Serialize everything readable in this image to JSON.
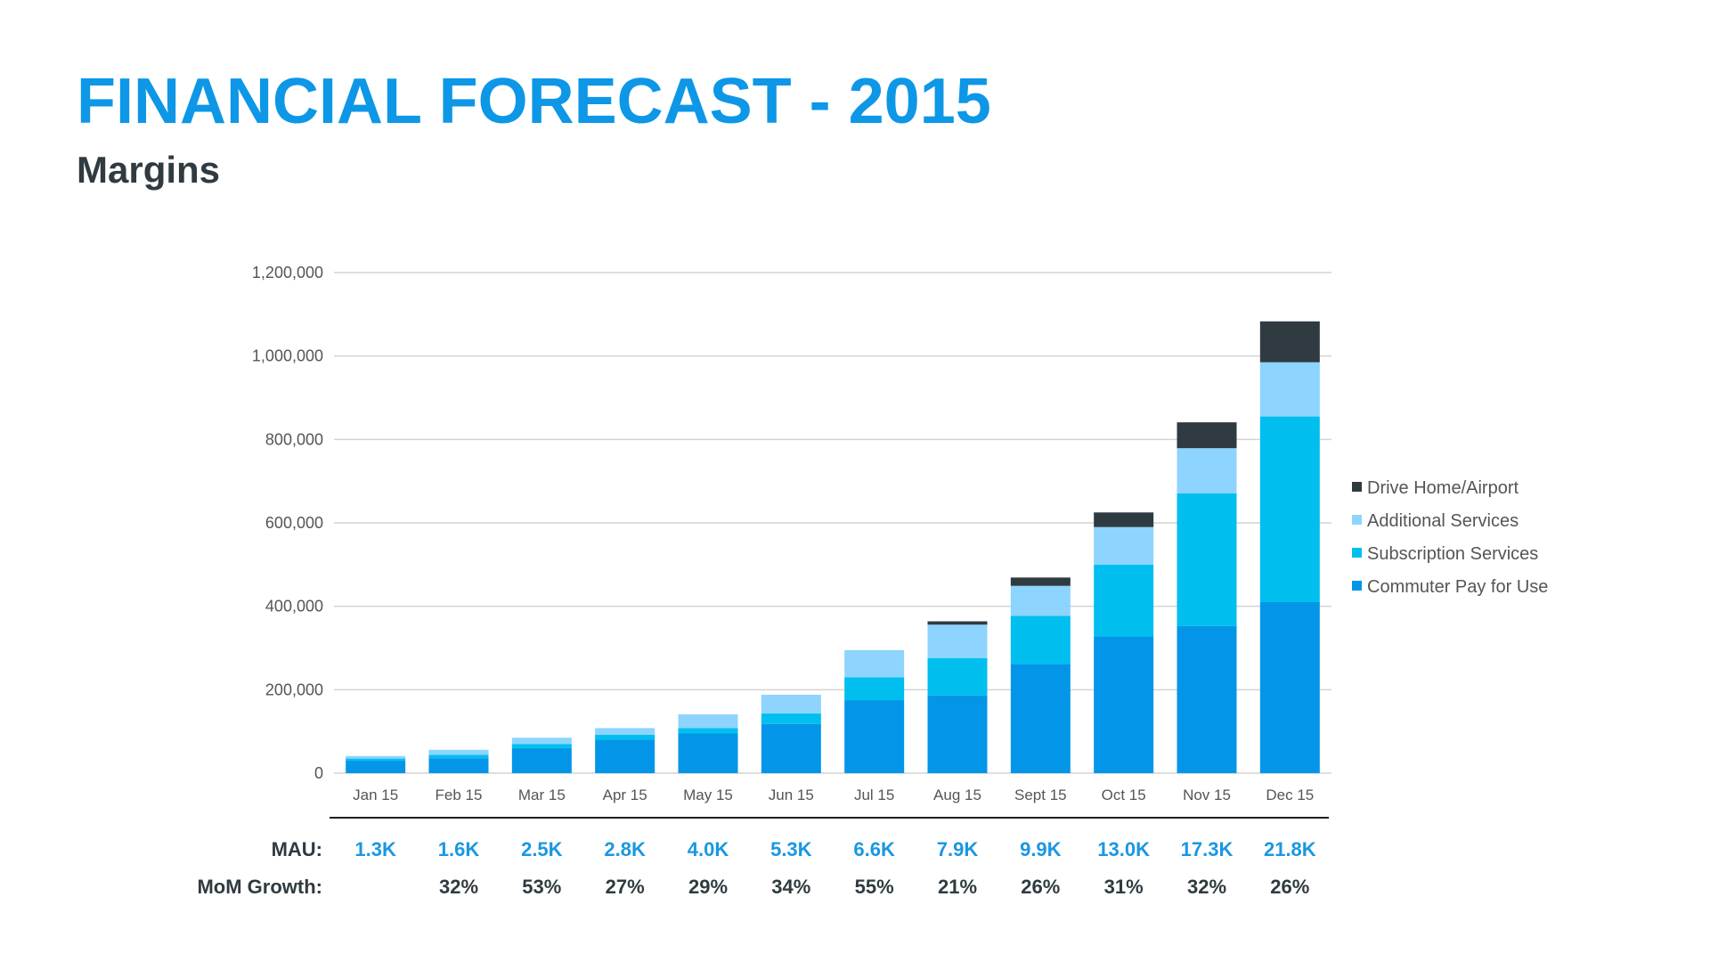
{
  "slide": {
    "title": "FINANCIAL FORECAST - 2015",
    "subtitle": "Margins"
  },
  "chart_data": {
    "type": "bar",
    "stacked": true,
    "categories": [
      "Jan 15",
      "Feb 15",
      "Mar 15",
      "Apr 15",
      "May 15",
      "Jun 15",
      "Jul 15",
      "Aug 15",
      "Sept 15",
      "Oct 15",
      "Nov 15",
      "Dec 15"
    ],
    "series": [
      {
        "name": "Commuter Pay for Use",
        "color": "#0396e8",
        "values": [
          30000,
          36000,
          60000,
          80000,
          95000,
          118000,
          175000,
          186000,
          262000,
          328000,
          353000,
          410000
        ]
      },
      {
        "name": "Subscription Services",
        "color": "#00bfef",
        "values": [
          5000,
          8000,
          10000,
          12000,
          13000,
          25000,
          55000,
          90000,
          115000,
          172000,
          318000,
          445000
        ]
      },
      {
        "name": "Additional Services",
        "color": "#8dd4fe",
        "values": [
          6000,
          12000,
          15000,
          16000,
          33000,
          45000,
          65000,
          80000,
          72000,
          90000,
          108000,
          130000
        ]
      },
      {
        "name": "Drive Home/Airport",
        "color": "#2f3b40",
        "values": [
          0,
          0,
          0,
          0,
          0,
          0,
          0,
          8000,
          20000,
          35000,
          62000,
          98000
        ]
      }
    ],
    "yticks": [
      "0",
      "200,000",
      "400,000",
      "600,000",
      "800,000",
      "1,000,000",
      "1,200,000"
    ],
    "ylim": [
      0,
      1200000
    ],
    "grid": true,
    "legend_position": "right",
    "xlabel": "",
    "ylabel": ""
  },
  "metrics_table": {
    "mau_label": "MAU:",
    "mau_values": [
      "1.3K",
      "1.6K",
      "2.5K",
      "2.8K",
      "4.0K",
      "5.3K",
      "6.6K",
      "7.9K",
      "9.9K",
      "13.0K",
      "17.3K",
      "21.8K"
    ],
    "growth_label": "MoM Growth:",
    "growth_values": [
      "",
      "32%",
      "53%",
      "27%",
      "29%",
      "34%",
      "55%",
      "21%",
      "26%",
      "31%",
      "32%",
      "26%"
    ]
  },
  "colors": {
    "title": "#0d97e6",
    "subtitle": "#2f3b40",
    "mau_values": "#1a97e3",
    "growth_values": "#2f3b40",
    "grid": "#d4d4d4",
    "axis_text": "#555555"
  }
}
